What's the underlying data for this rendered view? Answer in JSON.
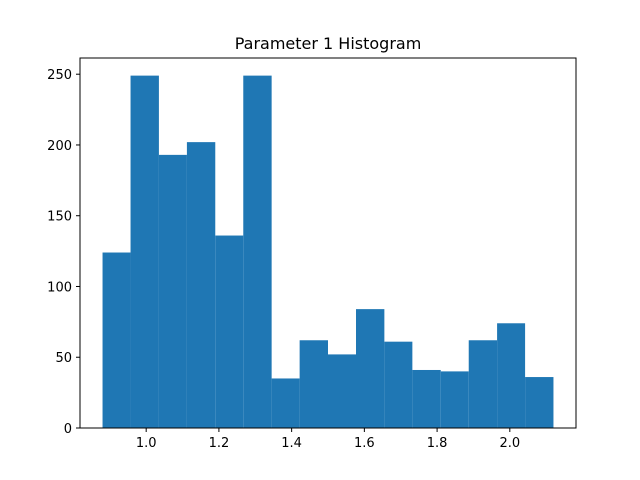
{
  "chart_data": {
    "type": "bar",
    "title": "Parameter 1 Histogram",
    "xlabel": "",
    "ylabel": "",
    "bar_color": "#1f77b4",
    "bin_edges": [
      0.88,
      0.957,
      1.035,
      1.112,
      1.19,
      1.267,
      1.345,
      1.422,
      1.5,
      1.577,
      1.655,
      1.732,
      1.81,
      1.887,
      1.965,
      2.042,
      2.12
    ],
    "values": [
      124,
      249,
      193,
      202,
      136,
      249,
      35,
      62,
      52,
      84,
      61,
      41,
      40,
      62,
      74,
      36
    ],
    "xlim": [
      0.818,
      2.182
    ],
    "ylim": [
      0,
      261.45
    ],
    "xticks": [
      1.0,
      1.2,
      1.4,
      1.6,
      1.8,
      2.0
    ],
    "xtick_labels": [
      "1.0",
      "1.2",
      "1.4",
      "1.6",
      "1.8",
      "2.0"
    ],
    "yticks": [
      0,
      50,
      100,
      150,
      200,
      250
    ],
    "ytick_labels": [
      "0",
      "50",
      "100",
      "150",
      "200",
      "250"
    ],
    "grid": false,
    "legend": "none"
  }
}
